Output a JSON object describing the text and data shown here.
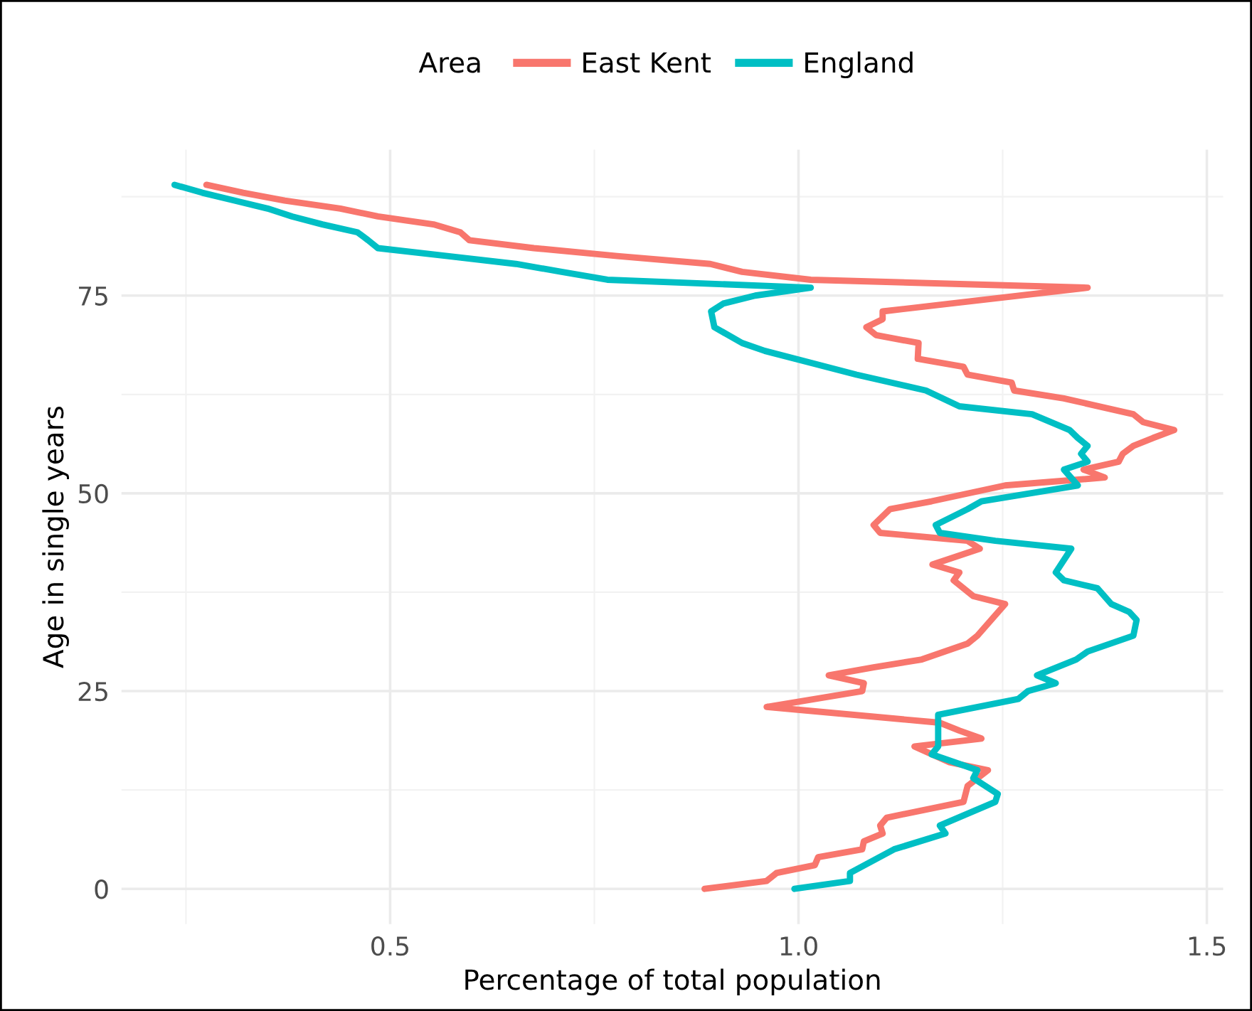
{
  "chart_data": {
    "type": "line",
    "xlabel": "Percentage of total population",
    "ylabel": "Age in single years",
    "legend_title": "Area",
    "legend": "top",
    "grid": true,
    "xlim": [
      0.171,
      1.52
    ],
    "ylim": [
      -4.45,
      93.45
    ],
    "xticks": [
      0.5,
      {
        "value": 1.0,
        "label": "1.0"
      },
      1.5
    ],
    "yticks": [
      0,
      25,
      50,
      75
    ],
    "series": [
      {
        "name": "East Kent",
        "color": "#f8766d",
        "x": [
          0.885,
          0.961,
          0.973,
          1.02,
          1.024,
          1.078,
          1.08,
          1.103,
          1.1,
          1.108,
          1.202,
          1.207,
          1.232,
          1.185,
          1.142,
          1.224,
          1.197,
          1.173,
          0.961,
          1.078,
          1.08,
          1.037,
          1.092,
          1.151,
          1.207,
          1.219,
          1.236,
          1.253,
          1.214,
          1.19,
          1.197,
          1.164,
          1.222,
          1.207,
          1.1,
          1.092,
          1.112,
          1.163,
          1.253,
          1.375,
          1.349,
          1.392,
          1.397,
          1.41,
          1.434,
          1.46,
          1.422,
          1.41,
          1.325,
          1.264,
          1.261,
          1.207,
          1.202,
          1.146,
          1.147,
          1.095,
          1.083,
          1.103,
          1.103,
          1.354,
          1.015,
          0.931,
          0.892,
          0.778,
          0.676,
          0.597,
          0.586,
          0.553,
          0.485,
          0.439,
          0.371,
          0.32,
          0.275
        ],
        "values": [
          0,
          1,
          2,
          3,
          4,
          5,
          6,
          7,
          8,
          9,
          11,
          13,
          15,
          16,
          18,
          19,
          20,
          21,
          23,
          25,
          26,
          27,
          28,
          29,
          31,
          32,
          34,
          36,
          37,
          39,
          40,
          41,
          43,
          44,
          45,
          46,
          48,
          49,
          51,
          52,
          53,
          54,
          55,
          56,
          57,
          58,
          59,
          60,
          62,
          63,
          64,
          65,
          66,
          67,
          69,
          70,
          71,
          72,
          73,
          76,
          77,
          78,
          79,
          80,
          81,
          82,
          83,
          84,
          85,
          86,
          87,
          88,
          89
        ]
      },
      {
        "name": "England",
        "color": "#00bfc4",
        "x": [
          0.995,
          1.063,
          1.063,
          1.117,
          1.18,
          1.173,
          1.241,
          1.244,
          1.214,
          1.219,
          1.163,
          1.171,
          1.171,
          1.269,
          1.281,
          1.315,
          1.292,
          1.34,
          1.354,
          1.41,
          1.414,
          1.405,
          1.383,
          1.366,
          1.325,
          1.315,
          1.334,
          1.241,
          1.173,
          1.168,
          1.207,
          1.224,
          1.342,
          1.325,
          1.354,
          1.346,
          1.354,
          1.342,
          1.332,
          1.286,
          1.197,
          1.156,
          1.071,
          0.959,
          0.931,
          0.897,
          0.893,
          0.908,
          0.947,
          1.015,
          0.766,
          0.71,
          0.654,
          0.57,
          0.485,
          0.473,
          0.46,
          0.417,
          0.38,
          0.35,
          0.31,
          0.27,
          0.236
        ],
        "values": [
          0,
          1,
          2,
          5,
          7,
          8,
          11,
          12,
          14,
          15,
          17,
          18,
          22,
          24,
          25,
          26,
          27,
          29,
          30,
          32,
          34,
          35,
          36,
          38,
          39,
          40,
          43,
          44,
          45,
          46,
          48,
          49,
          51,
          53,
          54,
          55,
          56,
          57,
          58,
          60,
          61,
          63,
          65,
          68,
          69,
          71,
          73,
          74,
          75,
          76,
          77,
          78,
          79,
          80,
          81,
          82,
          83,
          84,
          85,
          86,
          87,
          88,
          89
        ]
      }
    ]
  }
}
